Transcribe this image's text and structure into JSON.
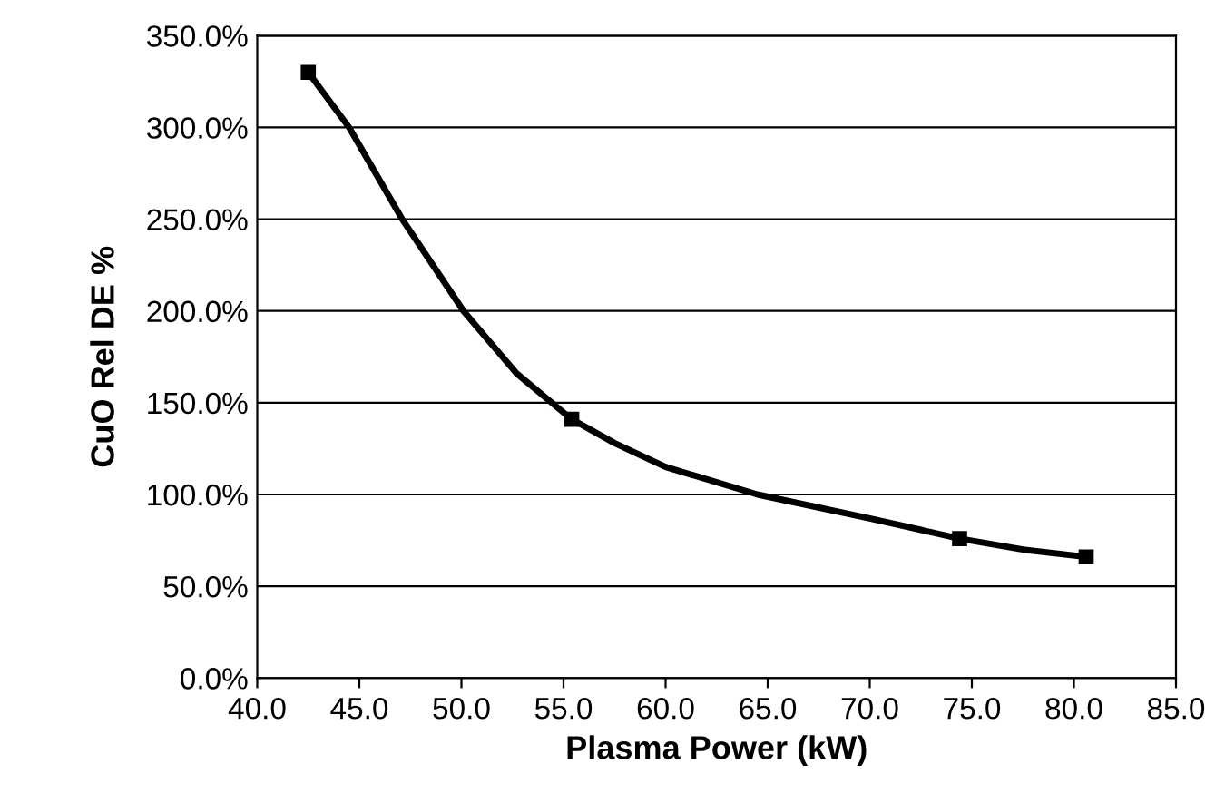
{
  "chart_data": {
    "type": "line",
    "xlabel": "Plasma Power (kW)",
    "ylabel": "CuO Rel DE %",
    "x": [
      42.5,
      55.4,
      74.4,
      80.6
    ],
    "series": [
      {
        "marker": "none",
        "color": "#000000",
        "x": [
          42.5,
          44.5,
          47.1,
          50.1,
          52.7,
          55.4,
          57.5,
          60,
          64.5,
          70,
          74.4,
          77.5,
          80.6
        ],
        "values": [
          330,
          300,
          250,
          200,
          166,
          141,
          128,
          115,
          100,
          87,
          76,
          70,
          66
        ]
      },
      {
        "type": "scatter",
        "marker": "square",
        "color": "#000000",
        "values": [
          330,
          141,
          76,
          66
        ]
      }
    ],
    "xlim": [
      40,
      85
    ],
    "xticks": [
      {
        "value": 40,
        "label": "40.0"
      },
      {
        "value": 45,
        "label": "45.0"
      },
      {
        "value": 50,
        "label": "50.0"
      },
      {
        "value": 55,
        "label": "55.0"
      },
      {
        "value": 60,
        "label": "60.0"
      },
      {
        "value": 65,
        "label": "65.0"
      },
      {
        "value": 70,
        "label": "70.0"
      },
      {
        "value": 75,
        "label": "75.0"
      },
      {
        "value": 80,
        "label": "80.0"
      },
      {
        "value": 85,
        "label": "85.0"
      }
    ],
    "ylim": [
      0,
      350
    ],
    "yticks": [
      {
        "value": 0,
        "label": "0.0%"
      },
      {
        "value": 50,
        "label": "50.0%"
      },
      {
        "value": 100,
        "label": "100.0%"
      },
      {
        "value": 150,
        "label": "150.0%"
      },
      {
        "value": 200,
        "label": "200.0%"
      },
      {
        "value": 250,
        "label": "250.0%"
      },
      {
        "value": 300,
        "label": "300.0%"
      },
      {
        "value": 350,
        "label": "350.0%"
      }
    ],
    "grid": "y",
    "line_style": "solid",
    "legend": false
  }
}
